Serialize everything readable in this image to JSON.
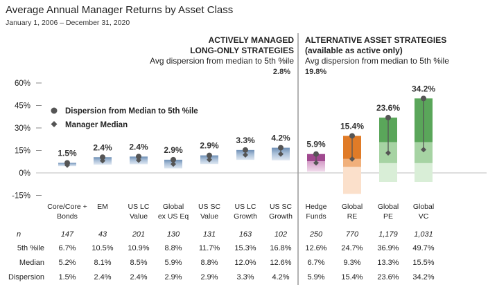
{
  "header": {
    "title": "Average Annual Manager Returns by Asset Class",
    "subtitle": "January 1, 2006 – December 31, 2020"
  },
  "groups": {
    "left": {
      "line1": "ACTIVELY MANAGED",
      "line2": "LONG-ONLY STRATEGIES",
      "line3": "Avg dispersion from median to 5th %ile",
      "avg": "2.8%"
    },
    "right": {
      "line1": "ALTERNATIVE ASSET STRATEGIES",
      "line2": "(available as active only)",
      "line3": "Avg dispersion from median to 5th %ile",
      "avg": "19.8%"
    }
  },
  "legend": {
    "dot": "Dispersion from Median to 5th %ile",
    "diamond": "Manager Median"
  },
  "table_labels": {
    "n": "n",
    "p5": "5th %ile",
    "median": "Median",
    "dispersion": "Dispersion"
  },
  "colors": {
    "blue": "#6e8fb5",
    "purple": "#a0498f",
    "orange": "#e07b27",
    "green": "#5aa65a",
    "marker": "#555555",
    "divider": "#999999"
  },
  "chart_data": {
    "type": "bar",
    "title": "Average Annual Manager Returns by Asset Class",
    "ylim": [
      -15,
      60
    ],
    "yticks": [
      "60%",
      "45%",
      "30%",
      "15%",
      "0%",
      "-15%"
    ],
    "ytick_values": [
      60,
      45,
      30,
      15,
      0,
      -15
    ],
    "grid": false,
    "legend_position": "top-left",
    "categories": [
      {
        "label1": "Core/Core +",
        "label2": "Bonds",
        "group": "active",
        "color": "blue",
        "n": "147",
        "p5": 6.7,
        "median": 5.2,
        "dispersion": 1.5,
        "p5_text": "6.7%",
        "median_text": "5.2%",
        "dispersion_text": "1.5%",
        "bottom": 4.5
      },
      {
        "label1": "EM",
        "label2": "",
        "group": "active",
        "color": "blue",
        "n": "43",
        "p5": 10.5,
        "median": 8.1,
        "dispersion": 2.4,
        "p5_text": "10.5%",
        "median_text": "8.1%",
        "dispersion_text": "2.4%",
        "bottom": 5.5
      },
      {
        "label1": "US LC",
        "label2": "Value",
        "group": "active",
        "color": "blue",
        "n": "201",
        "p5": 10.9,
        "median": 8.5,
        "dispersion": 2.4,
        "p5_text": "10.9%",
        "median_text": "8.5%",
        "dispersion_text": "2.4%",
        "bottom": 5.8
      },
      {
        "label1": "Global",
        "label2": "ex US Eq",
        "group": "active",
        "color": "blue",
        "n": "130",
        "p5": 8.8,
        "median": 5.9,
        "dispersion": 2.9,
        "p5_text": "8.8%",
        "median_text": "5.9%",
        "dispersion_text": "2.9%",
        "bottom": 3.0
      },
      {
        "label1": "US SC",
        "label2": "Value",
        "group": "active",
        "color": "blue",
        "n": "131",
        "p5": 11.7,
        "median": 8.8,
        "dispersion": 2.9,
        "p5_text": "11.7%",
        "median_text": "8.8%",
        "dispersion_text": "2.9%",
        "bottom": 5.9
      },
      {
        "label1": "US LC",
        "label2": "Growth",
        "group": "active",
        "color": "blue",
        "n": "163",
        "p5": 15.3,
        "median": 12.0,
        "dispersion": 3.3,
        "p5_text": "15.3%",
        "median_text": "12.0%",
        "dispersion_text": "3.3%",
        "bottom": 8.7
      },
      {
        "label1": "US SC",
        "label2": "Growth",
        "group": "active",
        "color": "blue",
        "n": "102",
        "p5": 16.8,
        "median": 12.6,
        "dispersion": 4.2,
        "p5_text": "16.8%",
        "median_text": "12.6%",
        "dispersion_text": "4.2%",
        "bottom": 8.4
      },
      {
        "label1": "Hedge",
        "label2": "Funds",
        "group": "alt",
        "color": "purple",
        "n": "250",
        "p5": 12.6,
        "median": 6.7,
        "dispersion": 5.9,
        "p5_text": "12.6%",
        "median_text": "6.7%",
        "dispersion_text": "5.9%",
        "bottom": 0.8
      },
      {
        "label1": "Global",
        "label2": "RE",
        "group": "alt",
        "color": "orange",
        "n": "770",
        "p5": 24.7,
        "median": 9.3,
        "dispersion": 15.4,
        "p5_text": "24.7%",
        "median_text": "9.3%",
        "dispersion_text": "15.4%",
        "bottom": -14.0
      },
      {
        "label1": "Global",
        "label2": "PE",
        "group": "alt",
        "color": "green",
        "n": "1,179",
        "p5": 36.9,
        "median": 13.3,
        "dispersion": 23.6,
        "p5_text": "36.9%",
        "median_text": "13.3%",
        "dispersion_text": "23.6%",
        "bottom": -6.0
      },
      {
        "label1": "Global",
        "label2": "VC",
        "group": "alt",
        "color": "green",
        "n": "1,031",
        "p5": 49.7,
        "median": 15.5,
        "dispersion": 34.2,
        "p5_text": "49.7%",
        "median_text": "15.5%",
        "dispersion_text": "34.2%",
        "bottom": -6.0
      }
    ]
  }
}
